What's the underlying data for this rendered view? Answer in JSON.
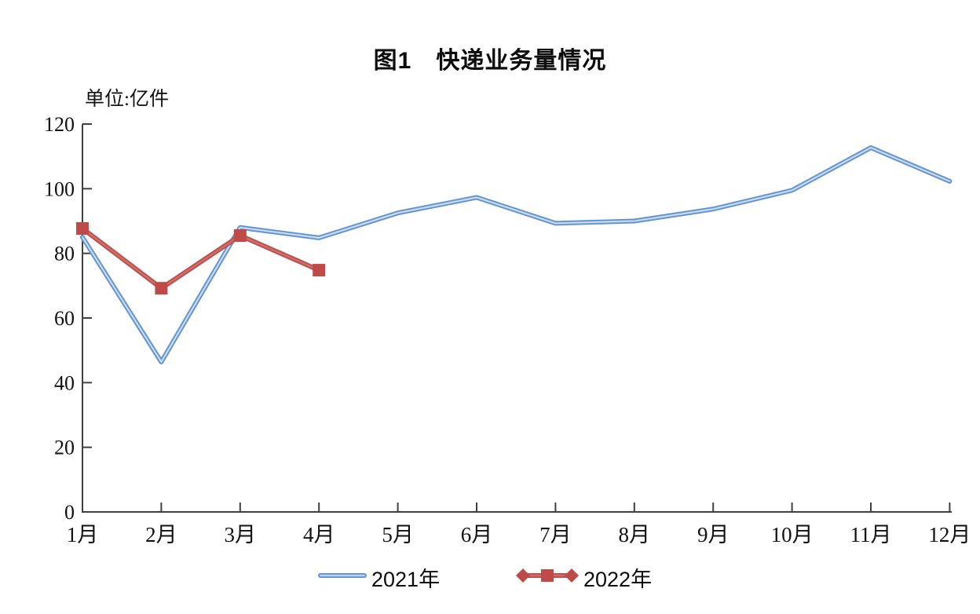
{
  "title": "图1　快递业务量情况",
  "unit_label": "单位:亿件",
  "legend": [
    {
      "label": "2021年",
      "color": "#6191D2",
      "marker": "none"
    },
    {
      "label": "2022年",
      "color": "#BE4B48",
      "marker": "square"
    }
  ],
  "chart_data": {
    "type": "line",
    "title": "图1 快递业务量情况",
    "ylabel": "单位:亿件",
    "xlabel": "",
    "categories": [
      "1月",
      "2月",
      "3月",
      "4月",
      "5月",
      "6月",
      "7月",
      "8月",
      "9月",
      "10月",
      "11月",
      "12月"
    ],
    "series": [
      {
        "name": "2021年",
        "color": "#6191D2",
        "highlight": "#9CC0EC",
        "core": "#DFEAF8",
        "marker": "none",
        "values": [
          85.0,
          46.4,
          88.0,
          84.8,
          92.5,
          97.3,
          89.3,
          90.0,
          93.7,
          99.5,
          112.7,
          102.3
        ]
      },
      {
        "name": "2022年",
        "color": "#BE4B48",
        "highlight": "#CB6E6B",
        "core": "#CB6E6B",
        "marker": "square",
        "values": [
          87.7,
          69.2,
          85.5,
          74.8,
          null,
          null,
          null,
          null,
          null,
          null,
          null,
          null
        ]
      }
    ],
    "ylim": [
      0,
      120
    ],
    "yticks": [
      0,
      20,
      40,
      60,
      80,
      100,
      120
    ],
    "grid": false,
    "legend_position": "bottom",
    "axis_color": "#404040"
  }
}
